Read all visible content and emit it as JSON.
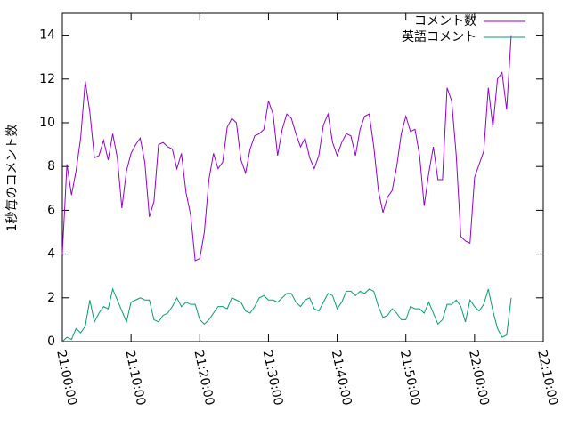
{
  "chart_data": {
    "type": "line",
    "y_label": "1秒毎のコメント数",
    "x": [
      "21:00:00",
      "21:00:40",
      "21:01:20",
      "21:02:00",
      "21:02:40",
      "21:03:20",
      "21:04:00",
      "21:04:40",
      "21:05:20",
      "21:06:00",
      "21:06:40",
      "21:07:20",
      "21:08:00",
      "21:08:40",
      "21:09:20",
      "21:10:00",
      "21:10:40",
      "21:11:20",
      "21:12:00",
      "21:12:40",
      "21:13:20",
      "21:14:00",
      "21:14:40",
      "21:15:20",
      "21:16:00",
      "21:16:40",
      "21:17:20",
      "21:18:00",
      "21:18:40",
      "21:19:20",
      "21:20:00",
      "21:20:40",
      "21:21:20",
      "21:22:00",
      "21:22:40",
      "21:23:20",
      "21:24:00",
      "21:24:40",
      "21:25:20",
      "21:26:00",
      "21:26:40",
      "21:27:20",
      "21:28:00",
      "21:28:40",
      "21:29:20",
      "21:30:00",
      "21:30:40",
      "21:31:20",
      "21:32:00",
      "21:32:40",
      "21:33:20",
      "21:34:00",
      "21:34:40",
      "21:35:20",
      "21:36:00",
      "21:36:40",
      "21:37:20",
      "21:38:00",
      "21:38:40",
      "21:39:20",
      "21:40:00",
      "21:40:40",
      "21:41:20",
      "21:42:00",
      "21:42:40",
      "21:43:20",
      "21:44:00",
      "21:44:40",
      "21:45:20",
      "21:46:00",
      "21:46:40",
      "21:47:20",
      "21:48:00",
      "21:48:40",
      "21:49:20",
      "21:50:00",
      "21:50:40",
      "21:51:20",
      "21:52:00",
      "21:52:40",
      "21:53:20",
      "21:54:00",
      "21:54:40",
      "21:55:20",
      "21:56:00",
      "21:56:40",
      "21:57:20",
      "21:58:00",
      "21:58:40",
      "21:59:20",
      "22:00:00",
      "22:00:40",
      "22:01:20",
      "22:02:00",
      "22:02:40",
      "22:03:20",
      "22:04:00",
      "22:04:40",
      "22:05:20"
    ],
    "series": [
      {
        "name": "コメント数",
        "color": "#9400d3",
        "values": [
          4.0,
          8.1,
          6.7,
          7.8,
          9.3,
          11.9,
          10.5,
          8.4,
          8.5,
          9.2,
          8.3,
          9.5,
          8.4,
          6.1,
          7.8,
          8.6,
          9.0,
          9.3,
          8.2,
          5.7,
          6.4,
          9.0,
          9.1,
          8.9,
          8.8,
          7.9,
          8.6,
          6.8,
          5.8,
          3.7,
          3.8,
          5.0,
          7.4,
          8.6,
          7.9,
          8.2,
          9.8,
          10.2,
          10.0,
          8.3,
          7.7,
          8.8,
          9.4,
          9.5,
          9.7,
          11.0,
          10.4,
          8.5,
          9.7,
          10.4,
          10.2,
          9.5,
          8.9,
          9.3,
          8.4,
          7.9,
          8.5,
          9.9,
          10.4,
          9.1,
          8.5,
          9.1,
          9.5,
          9.4,
          8.5,
          9.7,
          10.3,
          10.4,
          8.9,
          6.9,
          5.9,
          6.6,
          6.9,
          8.0,
          9.5,
          10.3,
          9.6,
          9.7,
          8.5,
          6.2,
          7.7,
          8.9,
          7.4,
          7.4,
          11.6,
          11.0,
          8.5,
          4.8,
          4.6,
          4.5,
          7.5,
          8.1,
          8.7,
          11.6,
          9.8,
          12.0,
          12.3,
          10.6,
          14.0
        ]
      },
      {
        "name": "英語コメント",
        "color": "#009e73",
        "values": [
          0.0,
          0.2,
          0.1,
          0.6,
          0.4,
          0.7,
          1.9,
          0.9,
          1.3,
          1.6,
          1.5,
          2.4,
          1.9,
          1.4,
          0.9,
          1.8,
          1.9,
          2.0,
          1.9,
          1.9,
          1.0,
          0.9,
          1.2,
          1.3,
          1.6,
          2.0,
          1.6,
          1.8,
          1.7,
          1.7,
          1.0,
          0.8,
          1.0,
          1.3,
          1.6,
          1.6,
          1.5,
          2.0,
          1.9,
          1.8,
          1.4,
          1.3,
          1.6,
          2.0,
          2.1,
          1.9,
          1.9,
          1.8,
          2.0,
          2.2,
          2.2,
          1.8,
          1.6,
          1.9,
          2.0,
          1.5,
          1.4,
          1.8,
          2.2,
          2.1,
          1.5,
          1.8,
          2.3,
          2.3,
          2.1,
          2.3,
          2.2,
          2.4,
          2.3,
          1.6,
          1.1,
          1.2,
          1.5,
          1.3,
          1.0,
          1.0,
          1.6,
          1.5,
          1.5,
          1.3,
          1.8,
          1.3,
          0.8,
          1.0,
          1.7,
          1.7,
          1.9,
          1.6,
          0.9,
          1.9,
          1.6,
          1.4,
          1.7,
          2.4,
          1.4,
          0.6,
          0.2,
          0.3,
          2.0
        ]
      }
    ],
    "xlim": [
      "21:00:00",
      "22:10:00"
    ],
    "xticks": [
      "21:00:00",
      "21:10:00",
      "21:20:00",
      "21:30:00",
      "21:40:00",
      "21:50:00",
      "22:00:00",
      "22:10:00"
    ],
    "ylim": [
      0,
      15
    ],
    "yticks": [
      0,
      2,
      4,
      6,
      8,
      10,
      12,
      14
    ],
    "legend": "top-right"
  }
}
